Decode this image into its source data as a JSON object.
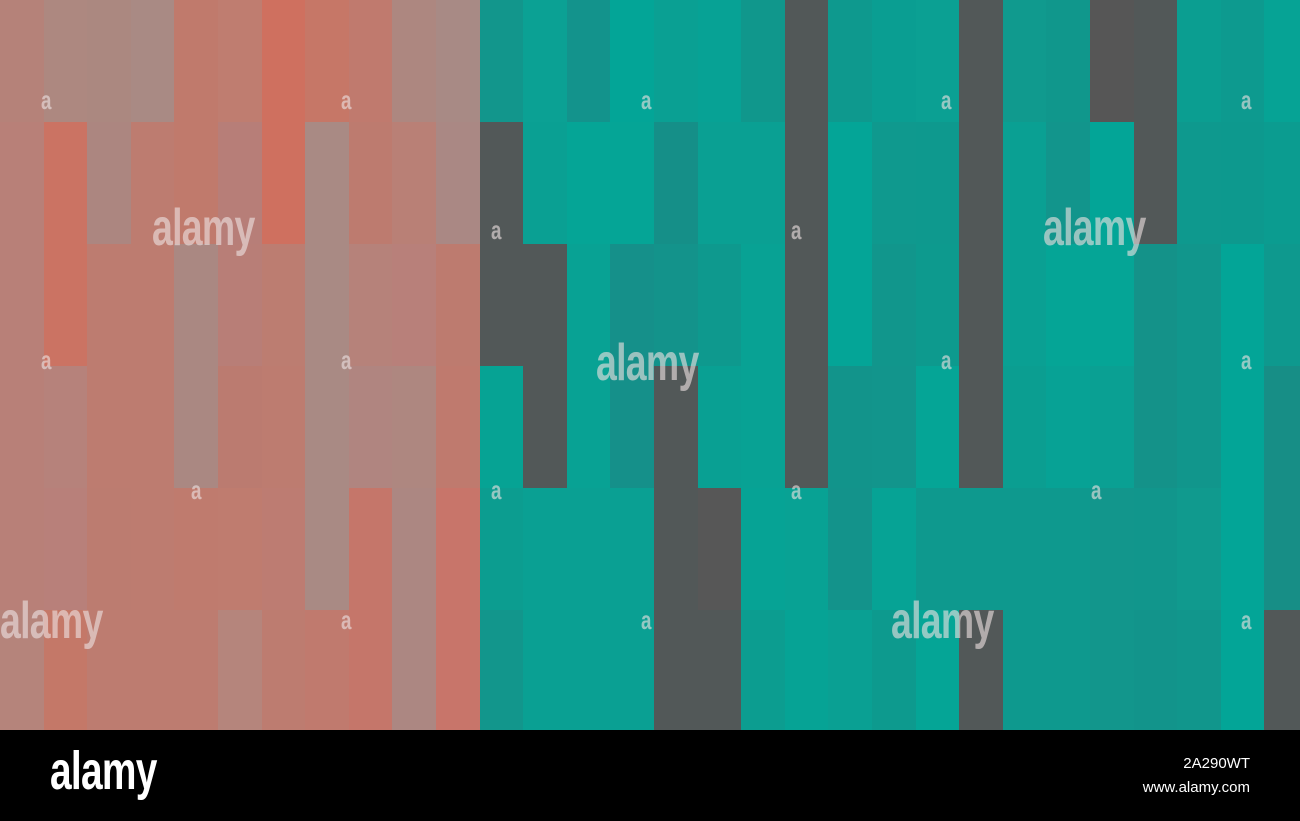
{
  "mosaic": {
    "colors": {
      "D": "#525858"
    },
    "rows": [
      [
        "#b58279",
        "#ad8880",
        "#ab8880",
        "#a98a84",
        "#c07a6c",
        "#bf7d70",
        "#cf705f",
        "#c67767",
        "#c07a6e",
        "#ad8780",
        "#a88a85",
        "#12968c",
        "#0ba194",
        "#13938c",
        "#03a597",
        "#0aa093",
        "#07a295",
        "#10978c",
        "D",
        "#0e998e",
        "#0a9e92",
        "#0ba093",
        "D",
        "#109a8e",
        "#10978c",
        "#565656",
        "D",
        "#0b9e91",
        "#0d9a8f",
        "#06a395"
      ],
      [
        "#b88078",
        "#cb7363",
        "#ac8680",
        "#bd7c70",
        "#c07a6c",
        "#b77e78",
        "#cf705f",
        "#a98a84",
        "#bd7b6f",
        "#b98076",
        "#aa8884",
        "D",
        "#0aa093",
        "#05a596",
        "#05a596",
        "#158f88",
        "#0aa093",
        "#0aa093",
        "D",
        "#04a597",
        "#0f998e",
        "#0e998e",
        "D",
        "#0aa093",
        "#12958c",
        "#03a597",
        "D",
        "#0e998e",
        "#0d998e",
        "#0b9c90"
      ],
      [
        "#b88078",
        "#cb7363",
        "#bd7c70",
        "#bd7c70",
        "#aa8882",
        "#b87e77",
        "#bc7d71",
        "#a98a84",
        "#b6827a",
        "#b8807a",
        "#bd7b6f",
        "D",
        "D",
        "#08a294",
        "#15908a",
        "#13938b",
        "#0e998e",
        "#08a294",
        "D",
        "#04a597",
        "#11968c",
        "#0d9a8e",
        "D",
        "#0aa093",
        "#05a596",
        "#05a596",
        "#149289",
        "#11968c",
        "#03a597",
        "#0e998e"
      ],
      [
        "#b88078",
        "#b6827b",
        "#bd7c70",
        "#bd7c70",
        "#aa8882",
        "#bb7b70",
        "#bd7c70",
        "#a98a84",
        "#b08580",
        "#ae8780",
        "#bf7a6e",
        "#06a394",
        "D",
        "#08a294",
        "#15908a",
        "D",
        "#09a093",
        "#08a294",
        "D",
        "#12948b",
        "#12958c",
        "#05a596",
        "D",
        "#0b9e91",
        "#07a295",
        "#0aa093",
        "#149289",
        "#11968c",
        "#03a597",
        "#178e86"
      ],
      [
        "#b88078",
        "#b8807a",
        "#bc7c70",
        "#bd7c70",
        "#bf7b6e",
        "#bf7c6f",
        "#bd7c72",
        "#a98a84",
        "#c5766a",
        "#ac8782",
        "#c8756a",
        "#0c9d90",
        "#0aa093",
        "#0aa093",
        "#0aa093",
        "D",
        "#575757",
        "#06a395",
        "#08a294",
        "#13938b",
        "#06a395",
        "#0e998e",
        "#0e998e",
        "#0e998e",
        "#0e998e",
        "#12968c",
        "#11968c",
        "#109a8e",
        "#03a597",
        "#178e86"
      ],
      [
        "#b5847b",
        "#c47868",
        "#bd7c70",
        "#bd7c70",
        "#bd7c70",
        "#b5857c",
        "#bd7c70",
        "#c07a6e",
        "#c5766a",
        "#ac8782",
        "#c8756a",
        "#12968c",
        "#0aa093",
        "#0aa093",
        "#0aa093",
        "D",
        "D",
        "#0c9d90",
        "#06a395",
        "#0aa093",
        "#0d9a8e",
        "#05a596",
        "D",
        "#0e998e",
        "#0e998e",
        "#12968c",
        "#12948b",
        "#11968c",
        "#03a597",
        "D"
      ]
    ]
  },
  "watermark": {
    "big_text": "alamy",
    "small_text": "a"
  },
  "footer": {
    "logo": "alamy",
    "image_id": "2A290WT",
    "site": "www.alamy.com"
  }
}
